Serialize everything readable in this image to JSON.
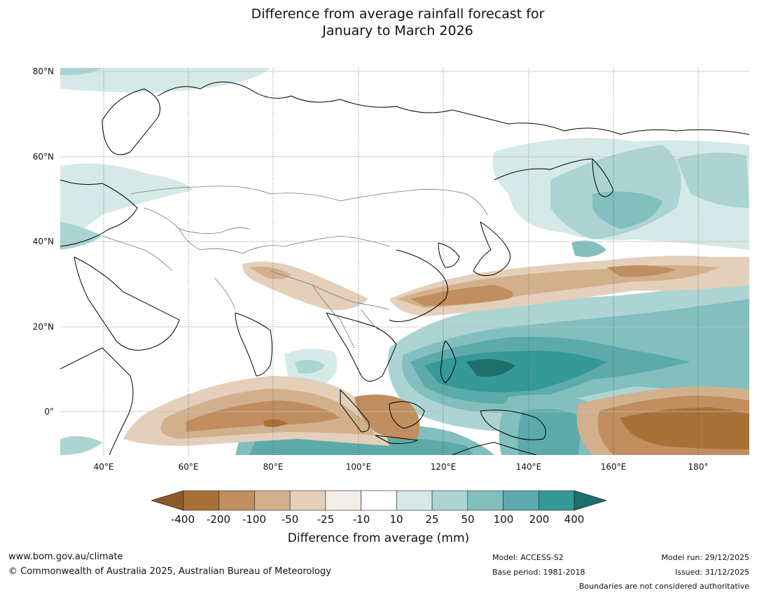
{
  "title_line1": "Difference from average rainfall forecast for",
  "title_line2": "January to March 2026",
  "lat_labels": [
    "80°N",
    "60°N",
    "40°N",
    "20°N",
    "0°"
  ],
  "lon_labels": [
    "40°E",
    "60°E",
    "80°E",
    "100°E",
    "120°E",
    "140°E",
    "160°E",
    "180°"
  ],
  "colorbar": {
    "title": "Difference from average (mm)",
    "ticks": [
      "-400",
      "-200",
      "-100",
      "-50",
      "-25",
      "-10",
      "10",
      "25",
      "50",
      "100",
      "200",
      "400"
    ],
    "colors": [
      "#8f5a2a",
      "#a87138",
      "#c08e5f",
      "#d3b08c",
      "#e3cfba",
      "#f3ede7",
      "#ffffff",
      "#d5e9e8",
      "#abd4d3",
      "#82bfbe",
      "#5cabaa",
      "#359998",
      "#1e6e6c"
    ]
  },
  "footer": {
    "url": "www.bom.gov.au/climate",
    "copyright": "© Commonwealth of Australia 2025, Australian Bureau of Meteorology",
    "model": "Model: ACCESS-S2",
    "base_period": "Base period: 1981-2018",
    "model_run": "Model run: 29/12/2025",
    "issued": "Issued: 31/12/2025",
    "disclaimer": "Boundaries are not considered authoritative"
  }
}
